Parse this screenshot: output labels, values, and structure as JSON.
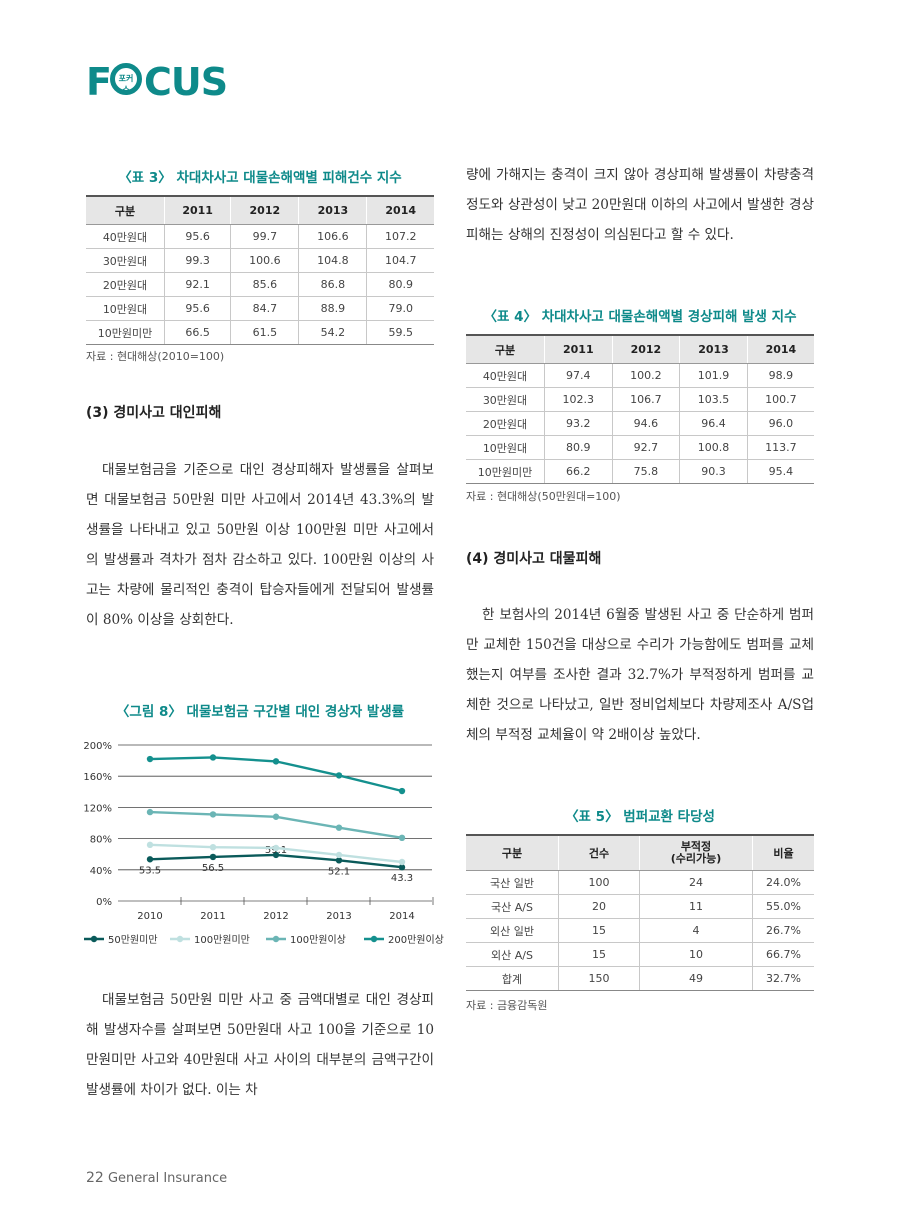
{
  "logo": {
    "f": "F",
    "ring_text": "포커스",
    "cus": "CUS"
  },
  "table3": {
    "caption": "〈표 3〉 차대차사고 대물손해액별 피해건수 지수",
    "headers": [
      "구분",
      "2011",
      "2012",
      "2013",
      "2014"
    ],
    "rows": [
      [
        "40만원대",
        "95.6",
        "99.7",
        "106.6",
        "107.2"
      ],
      [
        "30만원대",
        "99.3",
        "100.6",
        "104.8",
        "104.7"
      ],
      [
        "20만원대",
        "92.1",
        "85.6",
        "86.8",
        "80.9"
      ],
      [
        "10만원대",
        "95.6",
        "84.7",
        "88.9",
        "79.0"
      ],
      [
        "10만원미만",
        "66.5",
        "61.5",
        "54.2",
        "59.5"
      ]
    ],
    "source": "자료 : 현대해상(2010=100)"
  },
  "section3": {
    "heading": "(3) 경미사고 대인피해"
  },
  "para_left1": "대물보험금을 기준으로 대인 경상피해자 발생률을 살펴보면 대물보험금 50만원 미만 사고에서 2014년 43.3%의 발생률을 나타내고 있고 50만원 이상 100만원 미만 사고에서의 발생률과 격차가 점차 감소하고 있다. 100만원 이상의 사고는 차량에 물리적인 충격이 탑승자들에게 전달되어 발생률이 80% 이상을 상회한다.",
  "chart_data": {
    "type": "line",
    "title": "〈그림 8〉 대물보험금 구간별 대인 경상자 발생률",
    "x": [
      "2010",
      "2011",
      "2012",
      "2013",
      "2014"
    ],
    "yticks": [
      "200%",
      "160%",
      "120%",
      "80%",
      "40%",
      "0%"
    ],
    "ylim": [
      0,
      200
    ],
    "series": [
      {
        "name": "50만원미만",
        "values": [
          53.5,
          56.5,
          59.1,
          52.1,
          43.3
        ],
        "labels": [
          "53.5",
          "56.5",
          "59.1",
          "52.1",
          "43.3"
        ],
        "color": "#0a5a5a"
      },
      {
        "name": "100만원미만",
        "values": [
          72,
          69,
          68,
          59,
          50
        ],
        "color": "#bfe0e0"
      },
      {
        "name": "100만원이상",
        "values": [
          114,
          111,
          108,
          94,
          81
        ],
        "color": "#6bb5b5"
      },
      {
        "name": "200만원이상",
        "values": [
          182,
          184,
          179,
          161,
          141
        ],
        "color": "#14908e"
      }
    ],
    "legend_position": "bottom"
  },
  "para_left2": "대물보험금 50만원 미만 사고 중 금액대별로 대인 경상피해 발생자수를 살펴보면 50만원대 사고 100을 기준으로 10만원미만 사고와 40만원대 사고 사이의 대부분의 금액구간이 발생률에 차이가 없다. 이는 차",
  "para_right1": "량에 가해지는 충격이 크지 않아 경상피해 발생률이 차량충격정도와 상관성이 낮고 20만원대 이하의 사고에서 발생한 경상피해는 상해의 진정성이 의심된다고 할 수 있다.",
  "table4": {
    "caption": "〈표 4〉 차대차사고 대물손해액별 경상피해 발생 지수",
    "headers": [
      "구분",
      "2011",
      "2012",
      "2013",
      "2014"
    ],
    "rows": [
      [
        "40만원대",
        "97.4",
        "100.2",
        "101.9",
        "98.9"
      ],
      [
        "30만원대",
        "102.3",
        "106.7",
        "103.5",
        "100.7"
      ],
      [
        "20만원대",
        "93.2",
        "94.6",
        "96.4",
        "96.0"
      ],
      [
        "10만원대",
        "80.9",
        "92.7",
        "100.8",
        "113.7"
      ],
      [
        "10만원미만",
        "66.2",
        "75.8",
        "90.3",
        "95.4"
      ]
    ],
    "source": "자료 : 현대해상(50만원대=100)"
  },
  "section4": {
    "heading": "(4) 경미사고 대물피해"
  },
  "para_right2": "한 보험사의 2014년 6월중 발생된 사고 중 단순하게 범퍼만 교체한 150건을 대상으로 수리가 가능함에도 범퍼를 교체했는지 여부를 조사한 결과 32.7%가 부적정하게 범퍼를 교체한 것으로 나타났고, 일반 정비업체보다 차량제조사 A/S업체의 부적정 교체율이 약 2배이상 높았다.",
  "table5": {
    "caption": "〈표 5〉 범퍼교환 타당성",
    "headers": [
      "구분",
      "건수",
      "부적정",
      "(수리가능)",
      "비율"
    ],
    "rows": [
      [
        "국산 일반",
        "100",
        "24",
        "24.0%"
      ],
      [
        "국산 A/S",
        "20",
        "11",
        "55.0%"
      ],
      [
        "외산 일반",
        "15",
        "4",
        "26.7%"
      ],
      [
        "외산 A/S",
        "15",
        "10",
        "66.7%"
      ],
      [
        "합계",
        "150",
        "49",
        "32.7%"
      ]
    ],
    "source": "자료 : 금융감독원"
  },
  "footer": {
    "page": "22",
    "title": "General Insurance"
  }
}
